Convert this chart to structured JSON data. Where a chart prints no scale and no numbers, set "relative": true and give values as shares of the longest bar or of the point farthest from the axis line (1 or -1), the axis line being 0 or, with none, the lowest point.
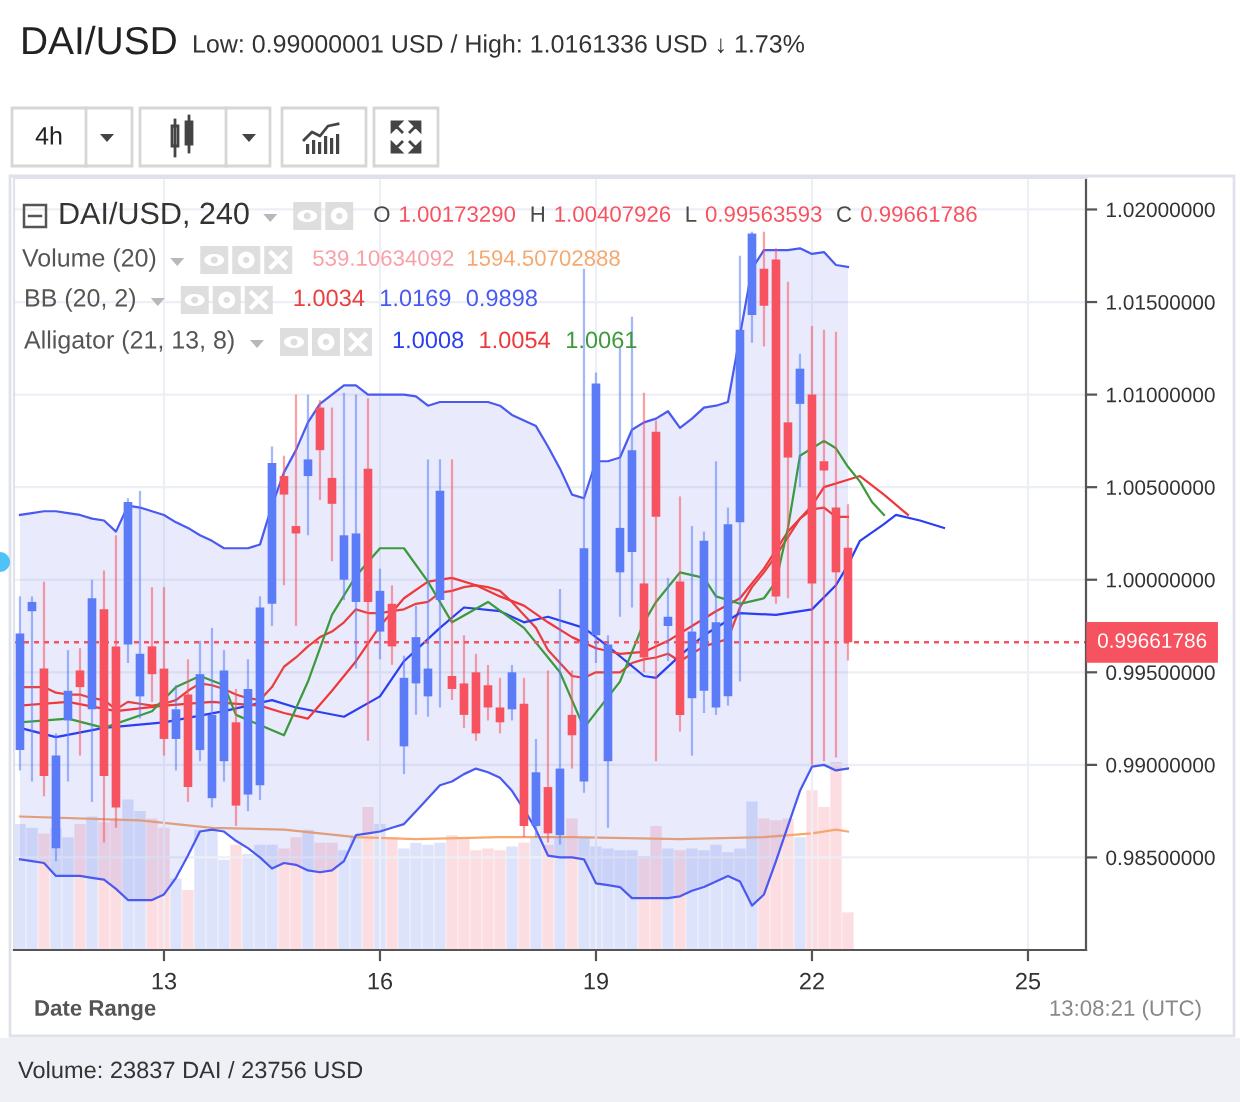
{
  "chart_data": [
    {
      "type": "candlestick",
      "title": "DAI/USD",
      "subtitle": "Low: 0.99000001 USD / High: 1.0161336 USD ↓ 1.73%",
      "x": [
        11,
        11.1667,
        11.3333,
        11.5,
        11.6667,
        11.8333,
        12,
        12.1667,
        12.3333,
        12.5,
        12.6667,
        12.8333,
        13,
        13.1667,
        13.3333,
        13.5,
        13.6667,
        13.8333,
        14,
        14.1667,
        14.3333,
        14.5,
        14.6667,
        14.8333,
        15,
        15.1667,
        15.3333,
        15.5,
        15.6667,
        15.8333,
        16,
        16.1667,
        16.3333,
        16.5,
        16.6667,
        16.8333,
        17,
        17.1667,
        17.3333,
        17.5,
        17.6667,
        17.8333,
        18,
        18.1667,
        18.3333,
        18.5,
        18.6667,
        18.8333,
        19,
        19.1667,
        19.3333,
        19.5,
        19.6667,
        19.8333,
        20,
        20.1667,
        20.3333,
        20.5,
        20.6667,
        20.8333,
        21,
        21.1667,
        21.3333,
        21.5,
        21.6667,
        21.8333,
        22,
        22.1667,
        22.3333,
        22.5
      ],
      "ohlc": [
        [
          0.9908,
          0.9991,
          0.9897,
          0.9971
        ],
        [
          0.9983,
          0.9991,
          0.9891,
          0.9988
        ],
        [
          0.9952,
          0.9999,
          0.9883,
          0.9894
        ],
        [
          0.9855,
          0.9917,
          0.9848,
          0.9905
        ],
        [
          0.9924,
          0.9962,
          0.9891,
          0.994
        ],
        [
          0.9951,
          0.9963,
          0.9905,
          0.9942
        ],
        [
          0.993,
          1.0,
          0.988,
          0.999
        ],
        [
          0.9984,
          1.0005,
          0.9858,
          0.9894
        ],
        [
          0.9964,
          1.0024,
          0.9866,
          0.9877
        ],
        [
          0.9965,
          1.0044,
          0.9955,
          1.0042
        ],
        [
          0.9937,
          1.0048,
          0.9925,
          0.996
        ],
        [
          0.9964,
          0.9996,
          0.9934,
          0.9949
        ],
        [
          0.9952,
          0.9996,
          0.9905,
          0.9914
        ],
        [
          0.9914,
          0.9943,
          0.9897,
          0.993
        ],
        [
          0.9938,
          0.9957,
          0.988,
          0.9888
        ],
        [
          0.9908,
          0.9967,
          0.9902,
          0.9949
        ],
        [
          0.9882,
          0.9974,
          0.9877,
          0.9927
        ],
        [
          0.9902,
          0.9962,
          0.9891,
          0.9951
        ],
        [
          0.9923,
          0.9941,
          0.9867,
          0.9878
        ],
        [
          0.9884,
          0.9957,
          0.9875,
          0.9941
        ],
        [
          0.9889,
          0.9991,
          0.9881,
          0.9985
        ],
        [
          0.9987,
          1.0072,
          0.9975,
          1.0063
        ],
        [
          1.0056,
          1.0067,
          0.9997,
          1.0046
        ],
        [
          1.0029,
          1.01,
          0.9975,
          1.0025
        ],
        [
          1.0056,
          1.01,
          1.0024,
          1.0065
        ],
        [
          1.0093,
          1.0097,
          1.0043,
          1.007
        ],
        [
          1.0055,
          1.0093,
          1.001,
          1.0041
        ],
        [
          1.0,
          1.0101,
          0.9989,
          1.0024
        ],
        [
          0.9988,
          1.01,
          0.9952,
          1.0025
        ],
        [
          1.006,
          1.0098,
          0.9913,
          0.9988
        ],
        [
          0.9972,
          1.0006,
          0.9957,
          0.9994
        ],
        [
          0.9987,
          0.9997,
          0.9954,
          0.9964
        ],
        [
          0.991,
          0.9959,
          0.9895,
          0.9947
        ],
        [
          0.9944,
          0.9986,
          0.9927,
          0.9969
        ],
        [
          0.9937,
          1.0065,
          0.9926,
          0.9952
        ],
        [
          0.9989,
          1.0065,
          0.9931,
          1.0048
        ],
        [
          0.9948,
          1.0065,
          0.9935,
          0.9941
        ],
        [
          0.9944,
          0.997,
          0.992,
          0.9927
        ],
        [
          0.995,
          0.996,
          0.9913,
          0.9917
        ],
        [
          0.9943,
          0.9954,
          0.9924,
          0.9931
        ],
        [
          0.9931,
          0.9947,
          0.9917,
          0.9923
        ],
        [
          0.993,
          0.9954,
          0.9924,
          0.995
        ],
        [
          0.9933,
          0.9947,
          0.9861,
          0.9867
        ],
        [
          0.9867,
          0.9914,
          0.9861,
          0.9896
        ],
        [
          0.9888,
          0.9951,
          0.9858,
          0.9863
        ],
        [
          0.9862,
          0.9995,
          0.9857,
          0.9898
        ],
        [
          0.9927,
          0.9951,
          0.9898,
          0.9916
        ],
        [
          0.9891,
          1.0168,
          0.9885,
          1.0017
        ],
        [
          0.997,
          1.0112,
          0.9955,
          1.0106
        ],
        [
          0.9902,
          0.997,
          0.9866,
          0.9965
        ],
        [
          1.0004,
          1.0126,
          0.998,
          1.0028
        ],
        [
          1.0015,
          1.0142,
          0.9985,
          1.007
        ],
        [
          0.9998,
          1.0101,
          0.995,
          0.9958
        ],
        [
          1.008,
          1.0086,
          0.9902,
          1.0034
        ],
        [
          0.9975,
          1.0001,
          0.9956,
          0.998
        ],
        [
          0.9999,
          1.0045,
          0.9918,
          0.9927
        ],
        [
          0.9936,
          1.0029,
          0.9905,
          0.9972
        ],
        [
          0.994,
          1.0026,
          0.9928,
          1.0021
        ],
        [
          0.9931,
          1.0064,
          0.9927,
          0.9977
        ],
        [
          0.9937,
          1.0039,
          0.9932,
          1.003
        ],
        [
          1.0031,
          1.0175,
          0.9945,
          1.0135
        ],
        [
          1.0143,
          1.0188,
          1.0128,
          1.0187
        ],
        [
          1.0168,
          1.0188,
          1.0126,
          1.0148
        ],
        [
          1.0173,
          1.0179,
          0.9987,
          0.9991
        ],
        [
          1.0085,
          1.0161,
          0.999,
          1.0066
        ],
        [
          1.0095,
          1.0122,
          1.005,
          1.0114
        ],
        [
          1.01,
          1.0137,
          0.99,
          0.9998
        ],
        [
          1.0064,
          1.0135,
          0.9902,
          1.0059
        ],
        [
          1.0039,
          1.0134,
          0.9904,
          1.0004
        ],
        [
          1.0017329,
          1.00407926,
          0.99563593,
          0.99661786
        ]
      ],
      "colors": [
        "#5b7cf6",
        "#5b7cf6",
        "#f7525f",
        "#5b7cf6",
        "#5b7cf6",
        "#f7525f",
        "#5b7cf6",
        "#f7525f",
        "#f7525f",
        "#5b7cf6",
        "#5b7cf6",
        "#f7525f",
        "#f7525f",
        "#5b7cf6",
        "#f7525f",
        "#5b7cf6",
        "#5b7cf6",
        "#5b7cf6",
        "#f7525f",
        "#5b7cf6",
        "#5b7cf6",
        "#5b7cf6",
        "#f7525f",
        "#f7525f",
        "#5b7cf6",
        "#f7525f",
        "#f7525f",
        "#5b7cf6",
        "#5b7cf6",
        "#f7525f",
        "#5b7cf6",
        "#f7525f",
        "#5b7cf6",
        "#5b7cf6",
        "#5b7cf6",
        "#5b7cf6",
        "#f7525f",
        "#f7525f",
        "#f7525f",
        "#f7525f",
        "#f7525f",
        "#5b7cf6",
        "#f7525f",
        "#5b7cf6",
        "#f7525f",
        "#5b7cf6",
        "#f7525f",
        "#5b7cf6",
        "#5b7cf6",
        "#5b7cf6",
        "#5b7cf6",
        "#5b7cf6",
        "#f7525f",
        "#f7525f",
        "#5b7cf6",
        "#f7525f",
        "#5b7cf6",
        "#5b7cf6",
        "#5b7cf6",
        "#5b7cf6",
        "#5b7cf6",
        "#5b7cf6",
        "#f7525f",
        "#f7525f",
        "#f7525f",
        "#5b7cf6",
        "#f7525f",
        "#f7525f",
        "#f7525f",
        "#f7525f"
      ],
      "series": [
        {
          "type": "line",
          "color": "#4a5af0",
          "values": [
            1.0035,
            1.0036,
            1.0037,
            1.0037,
            1.0036,
            1.0035,
            1.0033,
            1.0032,
            1.0026,
            1.004,
            1.0039,
            1.0037,
            1.0035,
            1.0031,
            1.0028,
            1.0024,
            1.0021,
            1.0017,
            1.0017,
            1.0017,
            1.0019,
            1.004,
            1.0058,
            1.007,
            1.0085,
            1.0095,
            1.01,
            1.0105,
            1.0105,
            1.01,
            1.01,
            1.01,
            1.01,
            1.0099,
            1.0094,
            1.0096,
            1.0096,
            1.0096,
            1.0096,
            1.0096,
            1.0094,
            1.0089,
            1.0086,
            1.0083,
            1.0072,
            1.006,
            1.0046,
            1.0044,
            1.0064,
            1.0064,
            1.0066,
            1.0081,
            1.0085,
            1.0087,
            1.0091,
            1.0082,
            1.0087,
            1.0093,
            1.0094,
            1.0096,
            1.0132,
            1.0168,
            1.0178,
            1.0178,
            1.0178,
            1.0179,
            1.0176,
            1.0177,
            1.017,
            1.0169
          ]
        },
        {
          "type": "line",
          "color": "#4a5af0",
          "values": [
            0.9849,
            0.9848,
            0.9847,
            0.984,
            0.984,
            0.984,
            0.9839,
            0.9838,
            0.9833,
            0.9827,
            0.9827,
            0.9827,
            0.983,
            0.9839,
            0.9851,
            0.9864,
            0.9865,
            0.9864,
            0.9859,
            0.9855,
            0.985,
            0.9844,
            0.9847,
            0.9846,
            0.9843,
            0.9842,
            0.9843,
            0.9848,
            0.9862,
            0.9863,
            0.9864,
            0.9866,
            0.9868,
            0.9875,
            0.9882,
            0.9889,
            0.9891,
            0.9895,
            0.9898,
            0.9896,
            0.9893,
            0.9886,
            0.9876,
            0.9865,
            0.9851,
            0.985,
            0.985,
            0.9849,
            0.9836,
            0.9835,
            0.9834,
            0.9828,
            0.9828,
            0.9828,
            0.9828,
            0.9829,
            0.9832,
            0.9834,
            0.9837,
            0.984,
            0.9837,
            0.9824,
            0.983,
            0.9848,
            0.9867,
            0.9886,
            0.9899,
            0.99,
            0.9897,
            0.9898
          ]
        },
        {
          "type": "line",
          "color": "#e8403f",
          "values": [
            0.9942,
            0.9942,
            0.9942,
            0.9939,
            0.9938,
            0.9938,
            0.9936,
            0.9935,
            0.993,
            0.9934,
            0.9933,
            0.9932,
            0.9933,
            0.9935,
            0.994,
            0.9944,
            0.9943,
            0.9941,
            0.9938,
            0.9936,
            0.9935,
            0.9942,
            0.9953,
            0.9958,
            0.9964,
            0.9969,
            0.9972,
            0.9977,
            0.9984,
            0.9982,
            0.9982,
            0.9983,
            0.9984,
            0.9987,
            0.9988,
            0.9993,
            0.9994,
            0.9996,
            0.9997,
            0.9996,
            0.9994,
            0.9988,
            0.9981,
            0.9974,
            0.9962,
            0.9955,
            0.9948,
            0.9947,
            0.995,
            0.995,
            0.995,
            0.9955,
            0.9957,
            0.9958,
            0.996,
            0.9956,
            0.996,
            0.9964,
            0.9966,
            0.9968,
            0.9985,
            0.9996,
            1.0004,
            1.0013,
            1.0023,
            1.0033,
            1.0038,
            1.0039,
            1.0034,
            1.0034
          ],
          "lower": [
            0.9849,
            0.9848,
            0.9847,
            0.984,
            0.984,
            0.984,
            0.9839,
            0.9838,
            0.9833,
            0.9827,
            0.9827,
            0.9827,
            0.983,
            0.9839,
            0.9851,
            0.9864,
            0.9865,
            0.9864,
            0.9859,
            0.9855,
            0.985,
            0.9844,
            0.9847,
            0.9846,
            0.9843,
            0.9842,
            0.9843,
            0.9848,
            0.9862,
            0.9863,
            0.9864,
            0.9866,
            0.9868,
            0.9875,
            0.9882,
            0.9889,
            0.9891,
            0.9895,
            0.9898,
            0.9896,
            0.9893,
            0.9886,
            0.9876,
            0.9865,
            0.9851,
            0.985,
            0.985,
            0.9849,
            0.9836,
            0.9835,
            0.9834,
            0.9828,
            0.9828,
            0.9828,
            0.9828,
            0.9829,
            0.9832,
            0.9834,
            0.9837,
            0.984,
            0.9837,
            0.9824,
            0.983,
            0.9848,
            0.9867,
            0.9886,
            0.9899,
            0.99,
            0.9897,
            0.9898
          ],
          "upper": [
            1.0035,
            1.0036,
            1.0037,
            1.0037,
            1.0036,
            1.0035,
            1.0033,
            1.0032,
            1.0026,
            1.004,
            1.0039,
            1.0037,
            1.0035,
            1.0031,
            1.0028,
            1.0024,
            1.0021,
            1.0017,
            1.0017,
            1.0017,
            1.0019,
            1.004,
            1.0058,
            1.007,
            1.0085,
            1.0095,
            1.01,
            1.0105,
            1.0105,
            1.01,
            1.01,
            1.01,
            1.01,
            1.0099,
            1.0094,
            1.0096,
            1.0096,
            1.0096,
            1.0096,
            1.0096,
            1.0094,
            1.0089,
            1.0086,
            1.0083,
            1.0072,
            1.006,
            1.0046,
            1.0044,
            1.0064,
            1.0064,
            1.0066,
            1.0081,
            1.0085,
            1.0087,
            1.0091,
            1.0082,
            1.0087,
            1.0093,
            1.0094,
            1.0096,
            1.0132,
            1.0168,
            1.0178,
            1.0178,
            1.0178,
            1.0179,
            1.0176,
            1.0177,
            1.017,
            1.0169
          ]
        },
        {
          "type": "line",
          "color": "#2b3ff2",
          "x": [
            11,
            11.5,
            12.1667,
            13,
            13.8333,
            14.5,
            14.8333,
            15.5,
            16,
            16.3333,
            16.8333,
            17.1667,
            17.6667,
            18,
            18.3333,
            18.8333,
            19.1667,
            19.6667,
            19.8333,
            20.1667,
            20.5,
            21,
            21.5,
            22,
            22.3333,
            22.5,
            22.6667,
            23,
            23.1667,
            23.5,
            23.8333
          ],
          "values": [
            0.992,
            0.9915,
            0.992,
            0.9923,
            0.9929,
            0.9935,
            0.9931,
            0.9926,
            0.9937,
            0.9956,
            0.9974,
            0.9985,
            0.9983,
            0.9977,
            0.998,
            0.9974,
            0.9964,
            0.9948,
            0.9947,
            0.9959,
            0.997,
            0.9982,
            0.9981,
            0.9984,
            0.9997,
            1.0008,
            1.0021,
            1.003,
            1.0035,
            1.0032,
            1.0028
          ]
        },
        {
          "type": "line",
          "color": "#f0373a",
          "x": [
            11,
            11.6667,
            12.3333,
            13,
            13.6667,
            14.3333,
            14.6667,
            15,
            15.3333,
            15.6667,
            16,
            16.3333,
            16.6667,
            17,
            17.3333,
            17.6667,
            18,
            18.3333,
            18.6667,
            19,
            19.3333,
            19.6667,
            20,
            20.3333,
            20.6667,
            21,
            21.3333,
            21.6667,
            22,
            22.1667,
            22.5,
            22.6667,
            23,
            23.3333
          ],
          "values": [
            0.9932,
            0.9934,
            0.9929,
            0.9932,
            0.9934,
            0.9932,
            0.9928,
            0.9925,
            0.994,
            0.9956,
            0.9975,
            0.999,
            0.9999,
            1.0001,
            0.9997,
            0.9991,
            0.9986,
            0.9977,
            0.9969,
            0.9963,
            0.996,
            0.9961,
            0.9967,
            0.9975,
            0.9983,
            0.999,
            1.0006,
            1.0026,
            1.004,
            1.005,
            1.0054,
            1.0056,
            1.0046,
            1.0035
          ]
        },
        {
          "type": "line",
          "color": "#3c9a3c",
          "x": [
            11,
            11.6667,
            12.1667,
            12.8333,
            13.1667,
            13.5,
            13.8333,
            14,
            14.6667,
            15,
            15.3333,
            15.6667,
            16,
            16.3333,
            16.6667,
            17,
            17.5,
            18,
            18.5,
            18.8333,
            19.3333,
            19.6667,
            19.8333,
            20.1667,
            20.5,
            20.6667,
            21,
            21.3333,
            21.5,
            21.6667,
            21.8333,
            22.1667,
            22.3333,
            22.5,
            22.6667,
            22.8333,
            23
          ],
          "values": [
            0.9923,
            0.9925,
            0.992,
            0.9929,
            0.9942,
            0.9948,
            0.9943,
            0.9927,
            0.9916,
            0.9945,
            0.9981,
            1.0002,
            1.0017,
            1.0017,
            0.9999,
            0.9977,
            0.9988,
            0.9974,
            0.995,
            0.992,
            0.9945,
            0.9977,
            0.9988,
            1.0004,
            1.0001,
            0.9991,
            0.9987,
            0.999,
            0.9999,
            1.0028,
            1.0067,
            1.0075,
            1.0071,
            1.0061,
            1.0053,
            1.0042,
            1.0035
          ]
        }
      ],
      "xlim": [
        10.917,
        25.806
      ],
      "ylim": [
        0.98,
        1.0217
      ],
      "xticks": [
        13,
        16,
        19,
        22,
        25
      ],
      "yticks": [
        {
          "value": 0.985,
          "label": "0.98500000"
        },
        {
          "value": 0.99,
          "label": "0.99000000"
        },
        {
          "value": 0.995,
          "label": "0.99500000"
        },
        {
          "value": 1.0,
          "label": "1.00000000"
        },
        {
          "value": 1.005,
          "label": "1.00500000"
        },
        {
          "value": 1.01,
          "label": "1.01000000"
        },
        {
          "value": 1.015,
          "label": "1.01500000"
        },
        {
          "value": 1.02,
          "label": "1.02000000"
        }
      ],
      "grid": true,
      "ref_lines": [
        {
          "axis": "y",
          "value": 0.99661786,
          "label": "0.99661786",
          "color": "#f7525f",
          "line_style": "dotted"
        }
      ],
      "annotations": [
        "4h",
        "DAI/USD, 240",
        "O",
        "1.00173290",
        "H",
        "1.00407926",
        "L",
        "0.99563593",
        "C",
        "0.99661786",
        "BB (20, 2)",
        "1.0034",
        "1.0169",
        "0.9898",
        "Alligator (21, 13, 8)",
        "1.0008",
        "1.0054",
        "1.0061",
        "Date Range",
        "13:08:21 (UTC)",
        "Volume: 23837 DAI / 23756 USD"
      ]
    },
    {
      "type": "bar",
      "relative": true,
      "x": [
        11,
        11.1667,
        11.3333,
        11.5,
        11.6667,
        11.8333,
        12,
        12.1667,
        12.3333,
        12.5,
        12.6667,
        12.8333,
        13,
        13.1667,
        13.3333,
        13.5,
        13.6667,
        13.8333,
        14,
        14.1667,
        14.3333,
        14.5,
        14.6667,
        14.8333,
        15,
        15.1667,
        15.3333,
        15.5,
        15.6667,
        15.8333,
        16,
        16.1667,
        16.3333,
        16.5,
        16.6667,
        16.8333,
        17,
        17.1667,
        17.3333,
        17.5,
        17.6667,
        17.8333,
        18,
        18.1667,
        18.3333,
        18.5,
        18.6667,
        18.8333,
        19,
        19.1667,
        19.3333,
        19.5,
        19.6667,
        19.8333,
        20,
        20.1667,
        20.3333,
        20.5,
        20.6667,
        20.8333,
        21,
        21.1667,
        21.3333,
        21.5,
        21.6667,
        21.8333,
        22,
        22.1667,
        22.3333,
        22.5
      ],
      "xlim": [
        10.917,
        25.806
      ],
      "tick_labels": false,
      "series": [
        {
          "type": "bar",
          "values": [
            0.67,
            0.65,
            0.62,
            0.65,
            0.6,
            0.67,
            0.71,
            0.68,
            0.7,
            0.8,
            0.74,
            0.7,
            0.65,
            0.38,
            0.32,
            0.64,
            0.64,
            0.48,
            0.56,
            0.51,
            0.56,
            0.56,
            0.54,
            0.6,
            0.64,
            0.57,
            0.57,
            0.53,
            0.6,
            0.76,
            0.67,
            0.6,
            0.54,
            0.57,
            0.56,
            0.57,
            0.61,
            0.6,
            0.53,
            0.54,
            0.53,
            0.55,
            0.57,
            0.6,
            0.56,
            0.6,
            0.7,
            0.6,
            0.55,
            0.54,
            0.53,
            0.53,
            0.5,
            0.66,
            0.54,
            0.53,
            0.54,
            0.53,
            0.56,
            0.52,
            0.54,
            0.79,
            0.7,
            0.69,
            0.7,
            0.6,
            0.85,
            0.76,
            1.0,
            0.2
          ],
          "colors": [
            "#dde3fa",
            "#dde3fa",
            "#fcdde1",
            "#dde3fa",
            "#dde3fa",
            "#fcdde1",
            "#dde3fa",
            "#fcdde1",
            "#fcdde1",
            "#dde3fa",
            "#dde3fa",
            "#fcdde1",
            "#fcdde1",
            "#dde3fa",
            "#fcdde1",
            "#dde3fa",
            "#dde3fa",
            "#dde3fa",
            "#fcdde1",
            "#dde3fa",
            "#dde3fa",
            "#dde3fa",
            "#fcdde1",
            "#fcdde1",
            "#dde3fa",
            "#fcdde1",
            "#fcdde1",
            "#dde3fa",
            "#dde3fa",
            "#fcdde1",
            "#dde3fa",
            "#fcdde1",
            "#dde3fa",
            "#dde3fa",
            "#dde3fa",
            "#dde3fa",
            "#fcdde1",
            "#fcdde1",
            "#fcdde1",
            "#fcdde1",
            "#fcdde1",
            "#dde3fa",
            "#fcdde1",
            "#dde3fa",
            "#fcdde1",
            "#dde3fa",
            "#fcdde1",
            "#dde3fa",
            "#dde3fa",
            "#dde3fa",
            "#dde3fa",
            "#dde3fa",
            "#fcdde1",
            "#fcdde1",
            "#dde3fa",
            "#fcdde1",
            "#dde3fa",
            "#dde3fa",
            "#dde3fa",
            "#dde3fa",
            "#dde3fa",
            "#dde3fa",
            "#fcdde1",
            "#fcdde1",
            "#fcdde1",
            "#dde3fa",
            "#fcdde1",
            "#fcdde1",
            "#fcdde1",
            "#fcdde1"
          ]
        },
        {
          "type": "line",
          "color": "#f6a86e",
          "x": [
            11,
            12.6667,
            13.6667,
            14.6667,
            15.6667,
            16.5,
            17.6667,
            18.6667,
            20.1667,
            21.3333,
            22,
            22.3333,
            22.5
          ],
          "values": [
            0.71,
            0.69,
            0.65,
            0.64,
            0.6,
            0.59,
            0.6,
            0.6,
            0.59,
            0.6,
            0.62,
            0.64,
            0.63
          ]
        }
      ],
      "annotations": [
        "Volume (20)",
        "539.10634092",
        "1594.50702888"
      ]
    }
  ]
}
